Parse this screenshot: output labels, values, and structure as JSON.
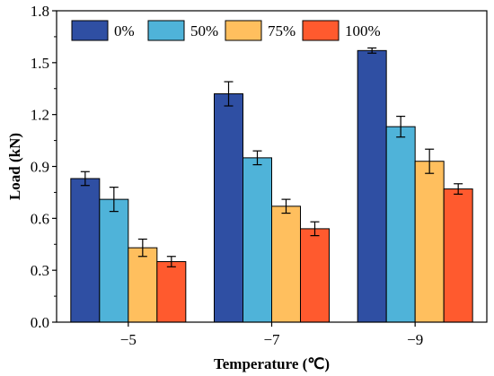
{
  "chart_data": {
    "type": "bar",
    "title": "",
    "xlabel": "Temperature (℃)",
    "ylabel": "Load (kN)",
    "categories": [
      "−5",
      "−7",
      "−9"
    ],
    "ylim": [
      0,
      1.8
    ],
    "yticks": [
      "0.0",
      "0.3",
      "0.6",
      "0.9",
      "1.2",
      "1.5",
      "1.8"
    ],
    "legend_position": "top",
    "grid": false,
    "series": [
      {
        "name": "0%",
        "color": "#2f4fa3",
        "values": [
          0.83,
          1.32,
          1.57
        ],
        "errors": [
          0.04,
          0.07,
          0.015
        ]
      },
      {
        "name": "50%",
        "color": "#4fb3d9",
        "values": [
          0.71,
          0.95,
          1.13
        ],
        "errors": [
          0.07,
          0.04,
          0.06
        ]
      },
      {
        "name": "75%",
        "color": "#ffbf5e",
        "values": [
          0.43,
          0.67,
          0.93
        ],
        "errors": [
          0.05,
          0.04,
          0.07
        ]
      },
      {
        "name": "100%",
        "color": "#ff5a2e",
        "values": [
          0.35,
          0.54,
          0.77
        ],
        "errors": [
          0.03,
          0.04,
          0.03
        ]
      }
    ]
  }
}
